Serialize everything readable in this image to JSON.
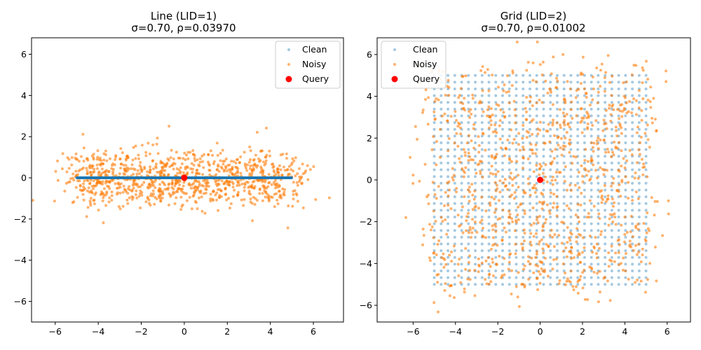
{
  "chart_data": [
    {
      "type": "scatter",
      "title": "Line (LID=1)",
      "subtitle": "σ=0.70, ρ=0.03970",
      "xlim": [
        -7.1,
        7.4
      ],
      "ylim": [
        -7.0,
        6.8
      ],
      "xticks": [
        -6,
        -4,
        -2,
        0,
        2,
        4,
        6
      ],
      "yticks": [
        -6,
        -4,
        -2,
        0,
        2,
        4,
        6
      ],
      "x_tick_labels": [
        "−6",
        "−4",
        "−2",
        "0",
        "2",
        "4",
        "6"
      ],
      "y_tick_labels": [
        "−6",
        "−4",
        "−2",
        "0",
        "2",
        "4",
        "6"
      ],
      "grid": false,
      "legend_position": "top-right",
      "series": [
        {
          "name": "Clean",
          "color": "#1f77b4",
          "description_of_points": "dense points along y=0 for x in [-5,5]",
          "x_range": [
            -5,
            5
          ],
          "y_value": 0,
          "point_count": 1000
        },
        {
          "name": "Noisy",
          "color": "#ff7f0e",
          "point_count": 1000,
          "noise_sigma": 0.7,
          "seed": 11
        },
        {
          "name": "Query",
          "color": "#ff0000",
          "x": [
            0
          ],
          "y": [
            0
          ]
        }
      ]
    },
    {
      "type": "scatter",
      "title": "Grid (LID=2)",
      "subtitle": "σ=0.70, ρ=0.01002",
      "xlim": [
        -7.7,
        7.1
      ],
      "ylim": [
        -6.8,
        6.8
      ],
      "xticks": [
        -6,
        -4,
        -2,
        0,
        2,
        4,
        6
      ],
      "yticks": [
        -6,
        -4,
        -2,
        0,
        2,
        4,
        6
      ],
      "x_tick_labels": [
        "−6",
        "−4",
        "−2",
        "0",
        "2",
        "4",
        "6"
      ],
      "y_tick_labels": [
        "−6",
        "−4",
        "−2",
        "0",
        "2",
        "4",
        "6"
      ],
      "grid": false,
      "legend_position": "top-left",
      "series": [
        {
          "name": "Clean",
          "color": "#1f77b4",
          "grid_range": [
            -5,
            5
          ],
          "grid_points_per_axis": 32
        },
        {
          "name": "Noisy",
          "color": "#ff7f0e",
          "point_count": 1024,
          "noise_sigma": 0.7,
          "seed": 29
        },
        {
          "name": "Query",
          "color": "#ff0000",
          "x": [
            0
          ],
          "y": [
            0
          ]
        }
      ]
    }
  ]
}
